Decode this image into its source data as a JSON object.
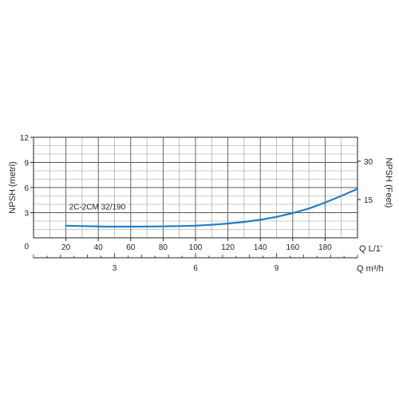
{
  "chart_data": {
    "type": "line",
    "title": "",
    "ylabel_left": "NPSH (metri)",
    "ylabel_right": "NPSH (Feet)",
    "xlabel_primary": "Q L/1'",
    "xlabel_secondary": "Q m³/h",
    "xlim": [
      0,
      200
    ],
    "ylim": [
      0,
      12
    ],
    "grid": true,
    "x_ticks": [
      20,
      40,
      60,
      80,
      100,
      120,
      140,
      160,
      180
    ],
    "x_ticks_origin_label": "0",
    "y_ticks_left": [
      3,
      6,
      9,
      12
    ],
    "y_ticks_right": [
      15,
      30
    ],
    "x_ticks_secondary": [
      3,
      6,
      9
    ],
    "series": [
      {
        "name": "2C-2CM 32/190",
        "color": "#1f7fc6",
        "x": [
          20,
          30,
          45,
          60,
          75,
          90,
          100,
          110,
          120,
          130,
          140,
          150,
          160,
          170,
          180,
          190,
          200
        ],
        "y": [
          1.45,
          1.4,
          1.33,
          1.33,
          1.35,
          1.4,
          1.45,
          1.55,
          1.7,
          1.9,
          2.15,
          2.5,
          2.95,
          3.5,
          4.2,
          5.0,
          5.85
        ]
      }
    ]
  }
}
